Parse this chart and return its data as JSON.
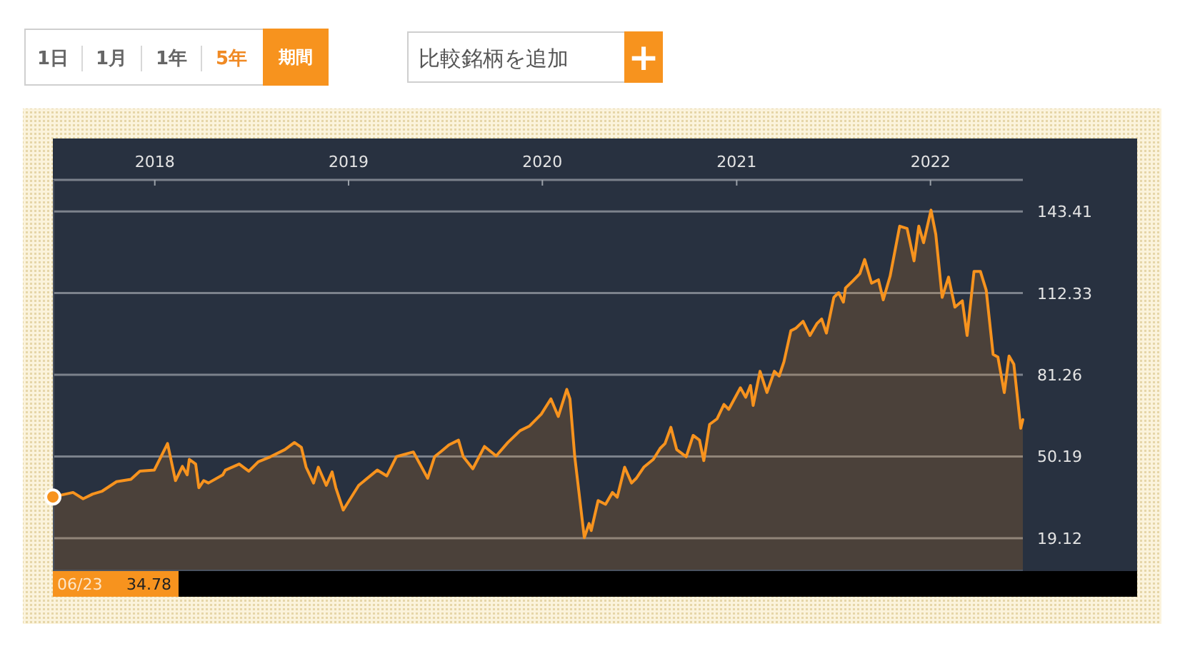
{
  "chart_data": [
    {
      "type": "other",
      "annotations": [
        "1日",
        "1月",
        "1年",
        "5年",
        "期間",
        "比較銘柄を追加",
        "+"
      ]
    },
    {
      "type": "area",
      "color": "#f7931e",
      "grid": "y",
      "xlim": [
        "2017-06-23",
        "2022-06-24"
      ],
      "xticks": [
        "2018",
        "2019",
        "2020",
        "2021",
        "2022"
      ],
      "ylim": [
        6.6,
        155.4
      ],
      "yticks": [
        19.12,
        50.19,
        81.26,
        112.33,
        143.41
      ],
      "annotations": [
        "06/23",
        "34.78"
      ],
      "x": [
        "2017-06-23",
        "2017-07-31",
        "2017-08-19",
        "2017-09-06",
        "2017-09-24",
        "2017-10-21",
        "2017-11-17",
        "2017-12-04",
        "2017-12-31",
        "2018-01-25",
        "2018-02-09",
        "2018-02-22",
        "2018-03-03",
        "2018-03-07",
        "2018-03-19",
        "2018-03-25",
        "2018-04-03",
        "2018-04-12",
        "2018-05-09",
        "2018-05-14",
        "2018-06-09",
        "2018-06-27",
        "2018-07-15",
        "2018-08-07",
        "2018-09-03",
        "2018-09-21",
        "2018-10-04",
        "2018-10-13",
        "2018-10-27",
        "2018-11-05",
        "2018-11-20",
        "2018-12-01",
        "2018-12-08",
        "2018-12-22",
        "2019-01-20",
        "2019-02-24",
        "2019-03-14",
        "2019-04-01",
        "2019-05-03",
        "2019-05-30",
        "2019-06-12",
        "2019-06-25",
        "2019-07-09",
        "2019-07-27",
        "2019-08-05",
        "2019-08-23",
        "2019-09-14",
        "2019-10-06",
        "2019-10-28",
        "2019-11-20",
        "2019-12-08",
        "2019-12-30",
        "2020-01-17",
        "2020-01-31",
        "2020-02-16",
        "2020-02-22",
        "2020-03-02",
        "2020-03-20",
        "2020-03-29",
        "2020-04-02",
        "2020-04-15",
        "2020-04-29",
        "2020-05-12",
        "2020-05-21",
        "2020-06-04",
        "2020-06-17",
        "2020-06-26",
        "2020-07-10",
        "2020-07-28",
        "2020-08-10",
        "2020-08-19",
        "2020-08-30",
        "2020-09-10",
        "2020-09-28",
        "2020-10-11",
        "2020-10-23",
        "2020-10-31",
        "2020-11-11",
        "2020-11-25",
        "2020-12-08",
        "2020-12-17",
        "2021-01-08",
        "2021-01-18",
        "2021-01-27",
        "2021-02-01",
        "2021-02-14",
        "2021-02-27",
        "2021-03-13",
        "2021-03-22",
        "2021-03-31",
        "2021-04-13",
        "2021-04-22",
        "2021-05-06",
        "2021-05-19",
        "2021-06-01",
        "2021-06-10",
        "2021-06-19",
        "2021-07-03",
        "2021-07-12",
        "2021-07-21",
        "2021-07-25",
        "2021-08-08",
        "2021-08-21",
        "2021-08-30",
        "2021-09-12",
        "2021-09-25",
        "2021-10-04",
        "2021-10-17",
        "2021-11-04",
        "2021-11-18",
        "2021-12-01",
        "2021-12-10",
        "2021-12-19",
        "2022-01-02",
        "2022-01-11",
        "2022-01-23",
        "2022-02-04",
        "2022-02-16",
        "2022-03-02",
        "2022-03-11",
        "2022-03-24",
        "2022-04-05",
        "2022-04-16",
        "2022-04-29",
        "2022-05-08",
        "2022-05-20",
        "2022-05-29",
        "2022-06-07",
        "2022-06-20",
        "2022-06-24"
      ],
      "values": [
        34.8,
        36.5,
        34.1,
        35.9,
        37.0,
        40.6,
        41.5,
        44.6,
        45.0,
        55.1,
        41.0,
        46.4,
        43.2,
        49.1,
        47.3,
        38.3,
        41.0,
        40.1,
        43.2,
        45.0,
        47.3,
        44.6,
        48.2,
        50.1,
        52.8,
        55.5,
        53.7,
        46.1,
        40.1,
        46.1,
        39.2,
        44.3,
        38.3,
        29.8,
        39.2,
        45.0,
        42.8,
        50.1,
        51.9,
        41.9,
        50.1,
        52.2,
        54.6,
        56.4,
        50.1,
        45.5,
        54.0,
        50.4,
        55.5,
        60.0,
        61.8,
        66.3,
        72.1,
        65.4,
        75.7,
        72.1,
        50.1,
        19.3,
        24.7,
        22.0,
        33.4,
        32.0,
        36.5,
        34.7,
        46.1,
        40.1,
        41.9,
        46.1,
        49.1,
        53.3,
        55.1,
        61.3,
        52.8,
        50.1,
        58.2,
        56.4,
        48.6,
        62.4,
        64.5,
        70.0,
        68.1,
        76.3,
        72.7,
        77.2,
        69.6,
        82.6,
        74.5,
        82.6,
        80.8,
        86.2,
        98.0,
        98.9,
        101.6,
        96.2,
        100.7,
        102.5,
        97.1,
        110.7,
        112.5,
        108.9,
        114.3,
        117.0,
        119.7,
        125.1,
        116.1,
        117.4,
        109.8,
        118.8,
        137.8,
        136.9,
        124.6,
        137.8,
        131.5,
        143.9,
        134.7,
        110.7,
        118.4,
        107.0,
        109.4,
        96.2,
        120.6,
        120.6,
        113.4,
        89.0,
        88.0,
        74.5,
        88.4,
        85.3,
        60.9,
        64.2
      ]
    }
  ]
}
